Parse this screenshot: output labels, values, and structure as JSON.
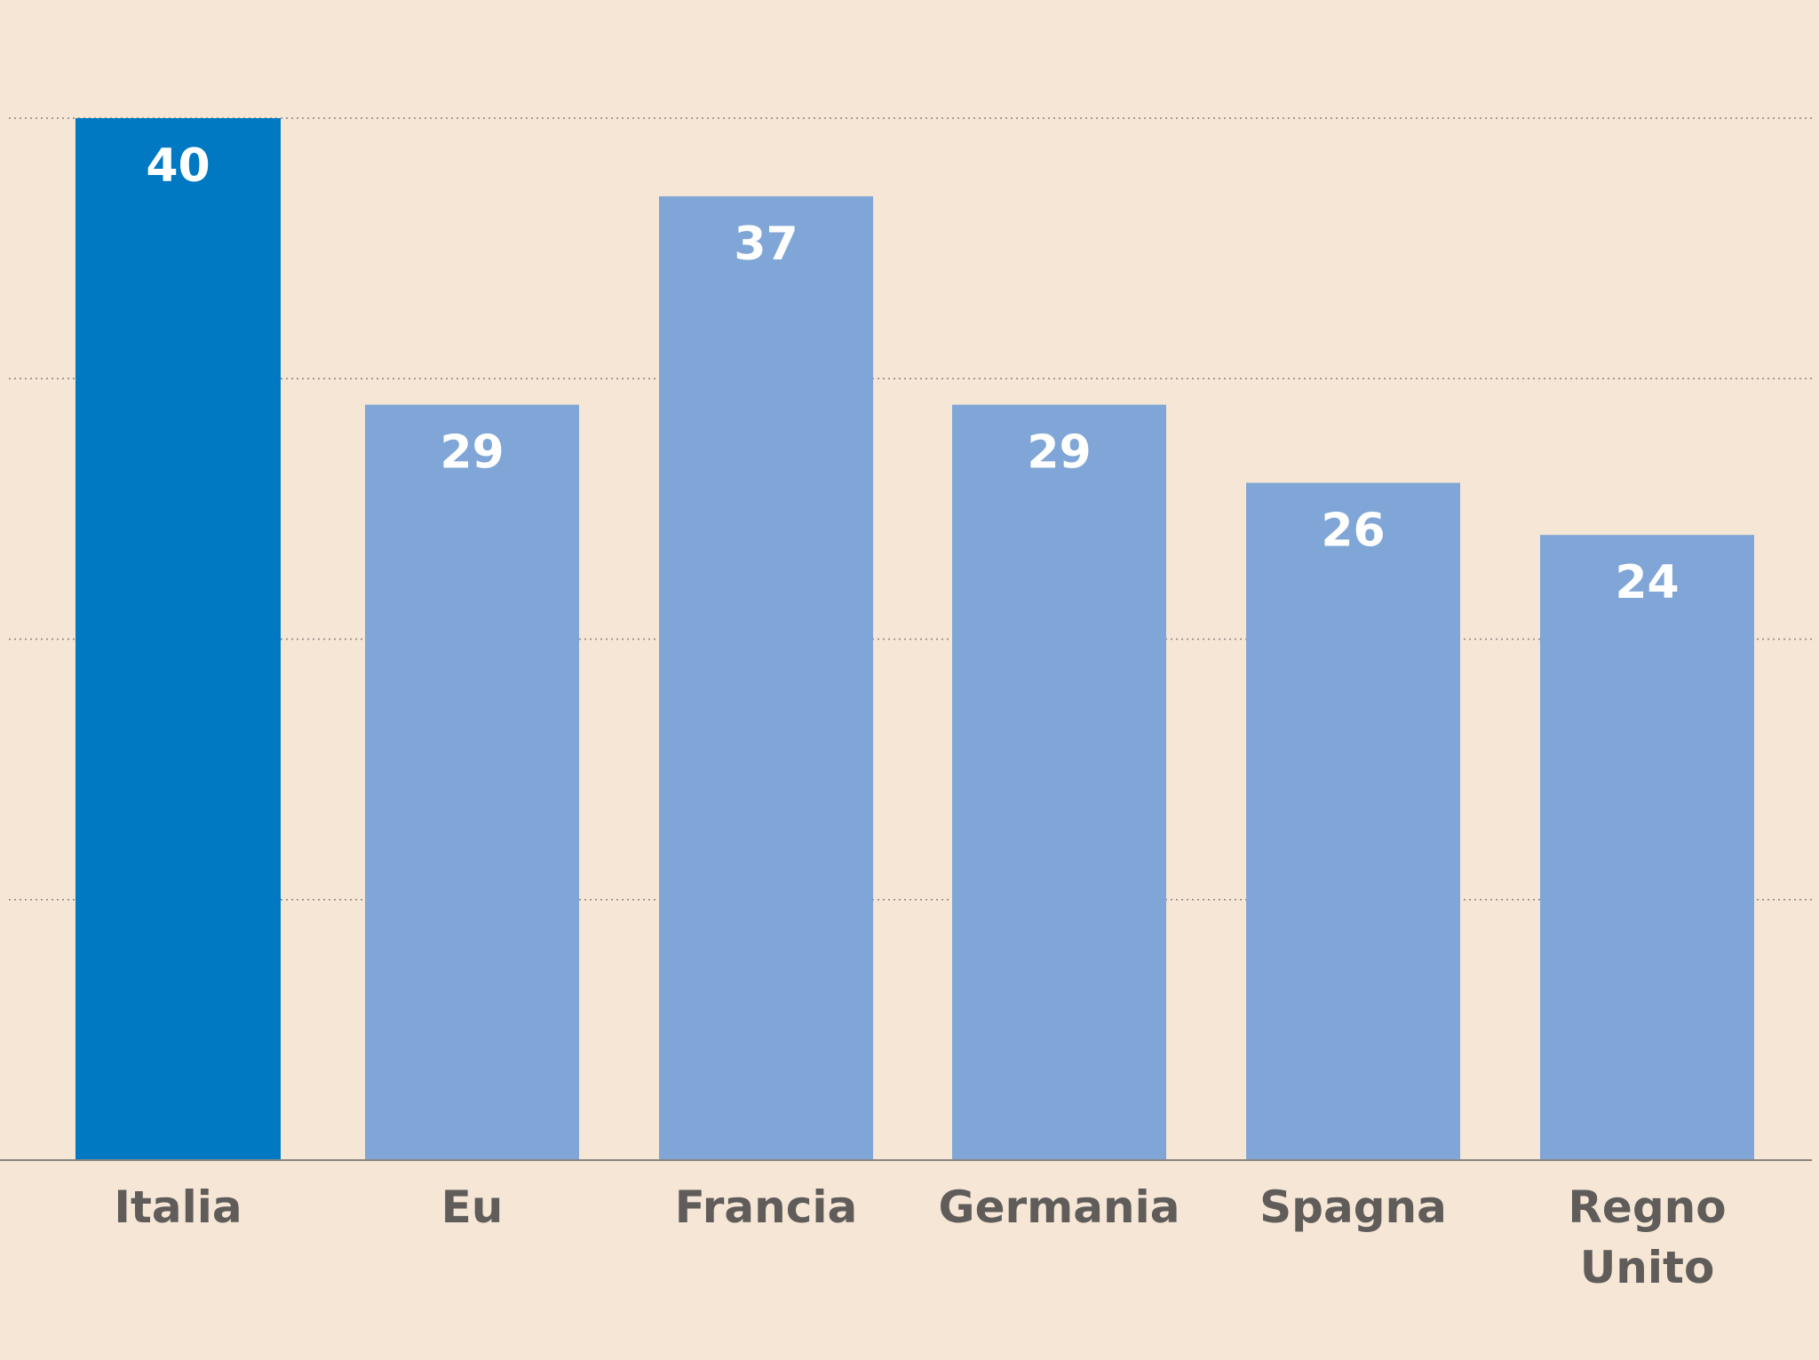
{
  "chart_data": {
    "type": "bar",
    "categories": [
      "Italia",
      "Eu",
      "Francia",
      "Germania",
      "Spagna",
      "Regno Unito"
    ],
    "category_lines": [
      [
        "Italia"
      ],
      [
        "Eu"
      ],
      [
        "Francia"
      ],
      [
        "Germania"
      ],
      [
        "Spagna"
      ],
      [
        "Regno",
        "Unito"
      ]
    ],
    "values": [
      40,
      29,
      37,
      29,
      26,
      24
    ],
    "data_labels": [
      "40",
      "29",
      "37",
      "29",
      "26",
      "24"
    ],
    "ylim": [
      0,
      40
    ],
    "gridlines_y": [
      10,
      20,
      30,
      40
    ],
    "grid": true,
    "highlight_index": 0,
    "colors": {
      "background": "#f5e6d6",
      "highlight": "#0079c2",
      "bar": "#7fa6d6",
      "value_label": "#ffffff",
      "category_label": "#5f5c5a",
      "gridline": "#8a8580",
      "baseline": "#8a8580"
    }
  }
}
